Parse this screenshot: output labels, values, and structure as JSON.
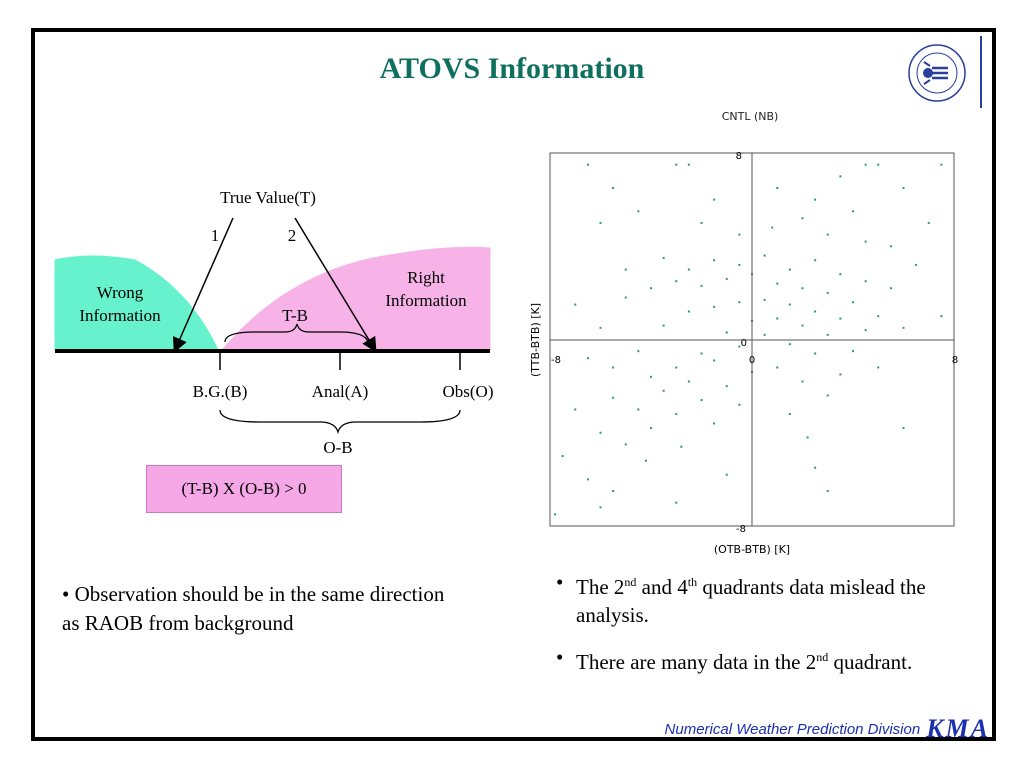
{
  "title": "ATOVS Information",
  "diagram": {
    "true_value": "True Value(T)",
    "arrow1": "1",
    "arrow2": "2",
    "wrong": [
      "Wrong",
      "Information"
    ],
    "right": [
      "Right",
      "Information"
    ],
    "tb": "T-B",
    "bg": "B.G.(B)",
    "anal": "Anal(A)",
    "obs": "Obs(O)",
    "ob": "O-B",
    "formula": "(T-B) X (O-B) > 0",
    "colors": {
      "wrong": "#66f2cc",
      "right": "#f7b3e8"
    }
  },
  "chart_data": {
    "type": "scatter",
    "title": "CNTL (NB)",
    "xlabel": "(OTB-BTB) [K]",
    "ylabel": "(TTB-BTB) [K]",
    "xlim": [
      -8,
      8
    ],
    "ylim": [
      -8,
      8
    ],
    "x_ticks": [
      "-8",
      "0",
      "8"
    ],
    "y_ticks": [
      "8",
      "0",
      "-8"
    ],
    "point_color": "#2a9a6a",
    "series": [
      {
        "points": [
          [
            -6.5,
            7.5
          ],
          [
            -3,
            7.5
          ],
          [
            -2.5,
            7.5
          ],
          [
            4.5,
            7.5
          ],
          [
            5,
            7.5
          ],
          [
            7.5,
            7.5
          ],
          [
            -5.5,
            6.5
          ],
          [
            -1.5,
            6
          ],
          [
            1,
            6.5
          ],
          [
            2.5,
            6
          ],
          [
            3.5,
            7
          ],
          [
            4,
            5.5
          ],
          [
            6,
            6.5
          ],
          [
            7,
            5
          ],
          [
            -6,
            5
          ],
          [
            -4.5,
            5.5
          ],
          [
            -2,
            5
          ],
          [
            -0.5,
            4.5
          ],
          [
            0.8,
            4.8
          ],
          [
            2,
            5.2
          ],
          [
            3,
            4.5
          ],
          [
            4.5,
            4.2
          ],
          [
            5.5,
            4
          ],
          [
            6.5,
            3.2
          ],
          [
            7.5,
            1
          ],
          [
            -5,
            3
          ],
          [
            -3.5,
            3.5
          ],
          [
            -2.5,
            3
          ],
          [
            -1.5,
            3.4
          ],
          [
            -0.5,
            3.2
          ],
          [
            0.5,
            3.6
          ],
          [
            1.5,
            3
          ],
          [
            2.5,
            3.4
          ],
          [
            3.5,
            2.8
          ],
          [
            4.5,
            2.5
          ],
          [
            5.5,
            2.2
          ],
          [
            -7,
            1.5
          ],
          [
            -6,
            0.5
          ],
          [
            -5,
            1.8
          ],
          [
            -4,
            2.2
          ],
          [
            -3,
            2.5
          ],
          [
            -2,
            2.3
          ],
          [
            -1,
            2.6
          ],
          [
            0,
            2.8
          ],
          [
            1,
            2.4
          ],
          [
            2,
            2.2
          ],
          [
            3,
            2
          ],
          [
            4,
            1.6
          ],
          [
            5,
            1
          ],
          [
            6,
            0.5
          ],
          [
            -6.5,
            -0.8
          ],
          [
            -5.5,
            -1.2
          ],
          [
            -4.5,
            -0.5
          ],
          [
            -3.5,
            0.6
          ],
          [
            -2.5,
            1.2
          ],
          [
            -1.5,
            1.4
          ],
          [
            -0.5,
            1.6
          ],
          [
            0.5,
            1.7
          ],
          [
            1.5,
            1.5
          ],
          [
            2.5,
            1.2
          ],
          [
            3.5,
            0.9
          ],
          [
            4.5,
            0.4
          ],
          [
            -4,
            -1.6
          ],
          [
            -3,
            -1.2
          ],
          [
            -2,
            -0.6
          ],
          [
            -1,
            0.3
          ],
          [
            0,
            0.8
          ],
          [
            1,
            0.9
          ],
          [
            2,
            0.6
          ],
          [
            3,
            0.2
          ],
          [
            4,
            -0.5
          ],
          [
            5,
            -1.2
          ],
          [
            -5.5,
            -2.5
          ],
          [
            -4.5,
            -3
          ],
          [
            -3.5,
            -2.2
          ],
          [
            -2.5,
            -1.8
          ],
          [
            -1.5,
            -0.9
          ],
          [
            -0.5,
            -0.3
          ],
          [
            0.5,
            0.2
          ],
          [
            1.5,
            -0.2
          ],
          [
            2.5,
            -0.6
          ],
          [
            3.5,
            -1.5
          ],
          [
            -7,
            -3
          ],
          [
            -6,
            -4
          ],
          [
            -5,
            -4.5
          ],
          [
            -4,
            -3.8
          ],
          [
            -3,
            -3.2
          ],
          [
            -2,
            -2.6
          ],
          [
            -1,
            -2
          ],
          [
            0,
            -1.4
          ],
          [
            1,
            -1.2
          ],
          [
            2,
            -1.8
          ],
          [
            3,
            -2.4
          ],
          [
            6,
            -3.8
          ],
          [
            -7.5,
            -5
          ],
          [
            -6.5,
            -6
          ],
          [
            -5.5,
            -6.5
          ],
          [
            -4.2,
            -5.2
          ],
          [
            -2.8,
            -4.6
          ],
          [
            -1.5,
            -3.6
          ],
          [
            -0.5,
            -2.8
          ],
          [
            1.5,
            -3.2
          ],
          [
            2.2,
            -4.2
          ],
          [
            3,
            -6.5
          ],
          [
            -7.8,
            -7.5
          ],
          [
            -6,
            -7.2
          ],
          [
            -3,
            -7
          ],
          [
            -1,
            -5.8
          ],
          [
            2.5,
            -5.5
          ]
        ]
      }
    ]
  },
  "left_bullet": "• Observation should be in the same direction as RAOB from background",
  "right_bullets": [
    {
      "pre": "The 2",
      "sup1": "nd",
      "mid": "  and 4",
      "sup2": "th",
      "post": "  quadrants data mislead the analysis."
    },
    {
      "pre": "There are many data in the 2",
      "sup1": "nd",
      "post": " quadrant."
    }
  ],
  "footer": {
    "text": "Numerical Weather Prediction Division",
    "logo": "KMA"
  }
}
